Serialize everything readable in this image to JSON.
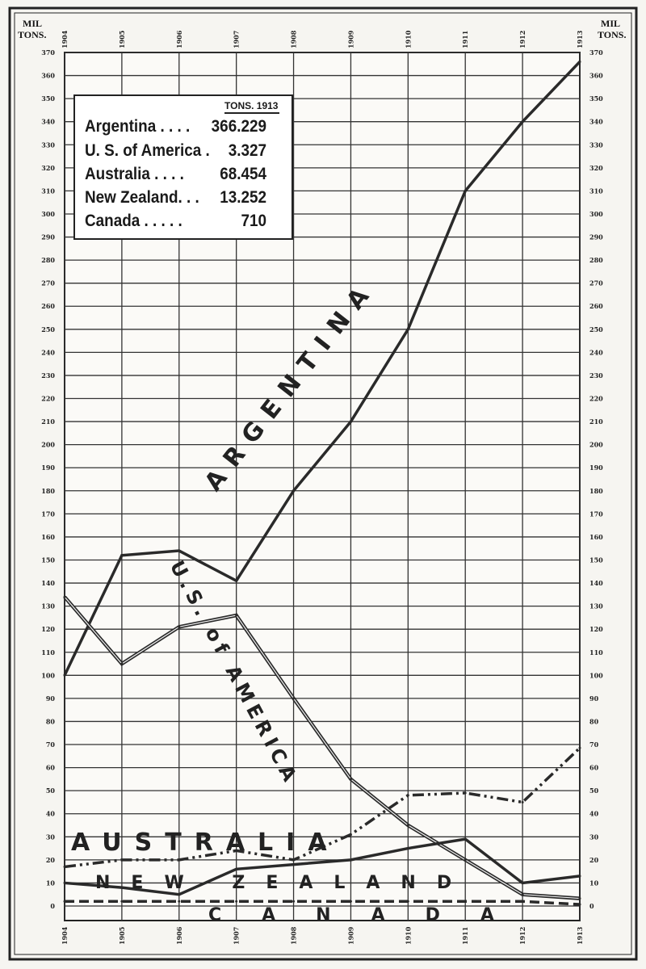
{
  "chart_data": {
    "type": "line",
    "x": [
      1904,
      1905,
      1906,
      1907,
      1908,
      1909,
      1910,
      1911,
      1912,
      1913
    ],
    "x_tick_labels": [
      "1904",
      "1905",
      "1906",
      "1907",
      "1908",
      "1909",
      "1910",
      "1911",
      "1912",
      "1913"
    ],
    "ylabel_left": "MIL TONS.",
    "ylabel_right": "MIL TONS.",
    "ylim": [
      0,
      370
    ],
    "y_ticks": [
      0,
      10,
      20,
      30,
      40,
      50,
      60,
      70,
      80,
      90,
      100,
      110,
      120,
      130,
      140,
      150,
      160,
      170,
      180,
      190,
      200,
      210,
      220,
      230,
      240,
      250,
      260,
      270,
      280,
      290,
      300,
      310,
      320,
      330,
      340,
      350,
      360,
      370
    ],
    "grid": true,
    "series": [
      {
        "name": "ARGENTINA",
        "style": "solid",
        "values": [
          100,
          152,
          154,
          141,
          180,
          210,
          250,
          310,
          340,
          366
        ]
      },
      {
        "name": "U.S. of AMERICA",
        "style": "double",
        "values": [
          134,
          105,
          121,
          126,
          90,
          55,
          35,
          20,
          5,
          3.3
        ]
      },
      {
        "name": "AUSTRALIA",
        "style": "dash-dot",
        "values": [
          17,
          20,
          20,
          24,
          20,
          31,
          48,
          49,
          45,
          68.5
        ]
      },
      {
        "name": "NEW ZEALAND",
        "style": "solid",
        "values": [
          10,
          8,
          5,
          16,
          18,
          20,
          25,
          29,
          10,
          13
        ]
      },
      {
        "name": "CANADA",
        "style": "dashed",
        "values": [
          2,
          2,
          2,
          2,
          2,
          2,
          2,
          2,
          2,
          0.7
        ]
      }
    ],
    "legend": {
      "header": "TONS. 1913",
      "placement": "top-left",
      "rows": [
        {
          "label": "Argentina . . . .",
          "value": "366.229"
        },
        {
          "label": "U. S. of America .",
          "value": "3.327"
        },
        {
          "label": "Australia . . . .",
          "value": "68.454"
        },
        {
          "label": "New Zealand. . .",
          "value": "13.252"
        },
        {
          "label": "Canada . . . . .",
          "value": "710"
        }
      ]
    },
    "color": "#2a2a2a"
  }
}
